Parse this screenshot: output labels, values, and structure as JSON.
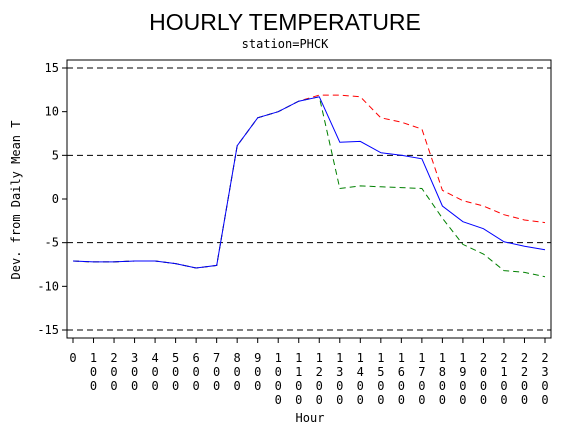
{
  "chart_data": {
    "type": "line",
    "title": "HOURLY TEMPERATURE",
    "subtitle": "station=PHCK",
    "xlabel": "Hour",
    "ylabel": "Dev. from Daily Mean T",
    "xlim": [
      0,
      2300
    ],
    "ylim": [
      -15,
      15
    ],
    "y_ticks": [
      15,
      10,
      5,
      0,
      -5,
      -10,
      -15
    ],
    "y_tick_labels": [
      "15",
      "10",
      "5",
      "0",
      "-5",
      "-10",
      "-15"
    ],
    "x": [
      0,
      100,
      200,
      300,
      400,
      500,
      600,
      700,
      800,
      900,
      1000,
      1100,
      1200,
      1300,
      1400,
      1500,
      1600,
      1700,
      1800,
      1900,
      2000,
      2100,
      2200,
      2300
    ],
    "x_tick_labels": [
      "0",
      "100",
      "200",
      "300",
      "400",
      "500",
      "600",
      "700",
      "800",
      "900",
      "1000",
      "1100",
      "1200",
      "1300",
      "1400",
      "1500",
      "1600",
      "1700",
      "1800",
      "1900",
      "2000",
      "2100",
      "2200",
      "2300"
    ],
    "reference_lines": [
      15,
      5,
      -5,
      -15
    ],
    "series": [
      {
        "color": "#0000ff",
        "style": "solid",
        "values": [
          -7.1,
          -7.2,
          -7.2,
          -7.1,
          -7.1,
          -7.4,
          -7.9,
          -7.6,
          6.1,
          9.3,
          10.0,
          11.2,
          11.7,
          6.5,
          6.6,
          5.3,
          5.0,
          4.6,
          -0.8,
          -2.6,
          -3.4,
          -4.9,
          -5.4,
          -5.8
        ]
      },
      {
        "color": "#ff0000",
        "style": "dashed",
        "values": [
          -7.1,
          -7.2,
          -7.2,
          -7.1,
          -7.1,
          -7.4,
          -7.9,
          -7.6,
          6.1,
          9.3,
          10.0,
          11.2,
          11.9,
          11.9,
          11.7,
          9.3,
          8.8,
          8.0,
          1.0,
          -0.2,
          -0.8,
          -1.8,
          -2.4,
          -2.7
        ]
      },
      {
        "color": "#008000",
        "style": "dashed",
        "values": [
          -7.1,
          -7.2,
          -7.2,
          -7.1,
          -7.1,
          -7.4,
          -7.9,
          -7.6,
          6.1,
          9.3,
          10.0,
          11.2,
          11.7,
          1.2,
          1.5,
          1.4,
          1.3,
          1.2,
          -2.2,
          -5.2,
          -6.3,
          -8.2,
          -8.4,
          -8.9
        ]
      }
    ]
  }
}
